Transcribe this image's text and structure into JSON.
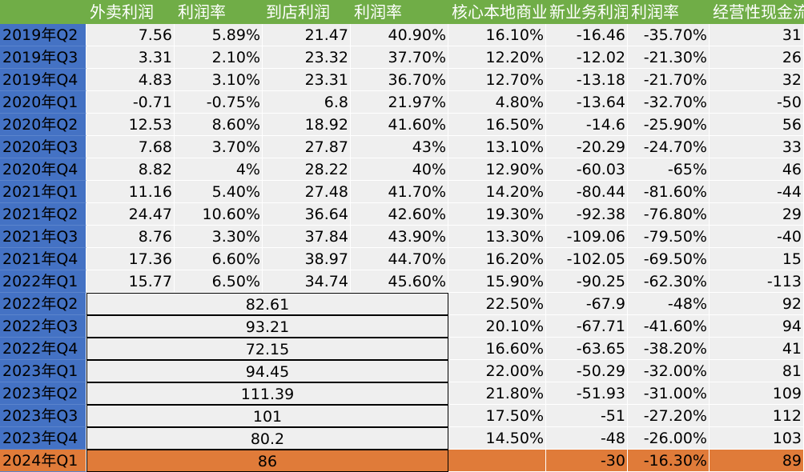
{
  "headers": [
    "",
    "外卖利润",
    "利润率",
    "到店利润",
    "利润率",
    "核心本地商业",
    "新业务利润",
    "利润率",
    "经营性现金流"
  ],
  "rows": [
    {
      "label": "2019年Q2",
      "cells": [
        "7.56",
        "5.89%",
        "21.47",
        "40.90%",
        "16.10%",
        "-16.46",
        "-35.70%",
        "31"
      ]
    },
    {
      "label": "2019年Q3",
      "cells": [
        "3.31",
        "2.10%",
        "23.32",
        "37.70%",
        "12.20%",
        "-12.02",
        "-21.30%",
        "26"
      ]
    },
    {
      "label": "2019年Q4",
      "cells": [
        "4.83",
        "3.10%",
        "23.31",
        "36.70%",
        "12.70%",
        "-13.18",
        "-21.70%",
        "32"
      ]
    },
    {
      "label": "2020年Q1",
      "cells": [
        "-0.71",
        "-0.75%",
        "6.8",
        "21.97%",
        "4.80%",
        "-13.64",
        "-32.70%",
        "-50"
      ]
    },
    {
      "label": "2020年Q2",
      "cells": [
        "12.53",
        "8.60%",
        "18.92",
        "41.60%",
        "16.50%",
        "-14.6",
        "-25.90%",
        "56"
      ]
    },
    {
      "label": "2020年Q3",
      "cells": [
        "7.68",
        "3.70%",
        "27.87",
        "43%",
        "13.10%",
        "-20.29",
        "-24.70%",
        "33"
      ]
    },
    {
      "label": "2020年Q4",
      "cells": [
        "8.82",
        "4%",
        "28.22",
        "40%",
        "12.90%",
        "-60.03",
        "-65%",
        "46"
      ]
    },
    {
      "label": "2021年Q1",
      "cells": [
        "11.16",
        "5.40%",
        "27.48",
        "41.70%",
        "14.20%",
        "-80.44",
        "-81.60%",
        "-44"
      ]
    },
    {
      "label": "2021年Q2",
      "cells": [
        "24.47",
        "10.60%",
        "36.64",
        "42.60%",
        "19.30%",
        "-92.38",
        "-76.80%",
        "29"
      ]
    },
    {
      "label": "2021年Q3",
      "cells": [
        "8.76",
        "3.30%",
        "37.84",
        "43.90%",
        "13.30%",
        "-109.06",
        "-79.50%",
        "-40"
      ]
    },
    {
      "label": "2021年Q4",
      "cells": [
        "17.36",
        "6.60%",
        "38.97",
        "44.70%",
        "16.20%",
        "-102.05",
        "-69.50%",
        "15"
      ]
    },
    {
      "label": "2022年Q1",
      "cells": [
        "15.77",
        "6.50%",
        "34.74",
        "45.60%",
        "15.90%",
        "-90.25",
        "-62.30%",
        "-113"
      ]
    }
  ],
  "merged_rows": [
    {
      "label": "2022年Q2",
      "merged": "82.61",
      "cells": [
        "22.50%",
        "-67.9",
        "-48%",
        "92"
      ]
    },
    {
      "label": "2022年Q3",
      "merged": "93.21",
      "cells": [
        "20.10%",
        "-67.71",
        "-41.60%",
        "94"
      ]
    },
    {
      "label": "2022年Q4",
      "merged": "72.15",
      "cells": [
        "16.60%",
        "-63.65",
        "-38.20%",
        "41"
      ]
    },
    {
      "label": "2023年Q1",
      "merged": "94.45",
      "cells": [
        "22.00%",
        "-50.29",
        "-32.00%",
        "81"
      ]
    },
    {
      "label": "2023年Q2",
      "merged": "111.39",
      "cells": [
        "21.80%",
        "-51.93",
        "-31.00%",
        "109"
      ]
    },
    {
      "label": "2023年Q3",
      "merged": "101",
      "cells": [
        "17.50%",
        "-51",
        "-27.20%",
        "112"
      ]
    },
    {
      "label": "2023年Q4",
      "merged": "80.2",
      "cells": [
        "14.50%",
        "-48",
        "-26.00%",
        "103"
      ]
    },
    {
      "label": "2024年Q1",
      "merged": "86",
      "cells": [
        "",
        "-30",
        "-16.30%",
        "89"
      ],
      "highlight": true
    }
  ],
  "colors": {
    "header_bg": "#70ad47",
    "row_label_bg": "#4472c4",
    "cell_bg": "#efefef",
    "highlight_bg": "#e07b39"
  }
}
